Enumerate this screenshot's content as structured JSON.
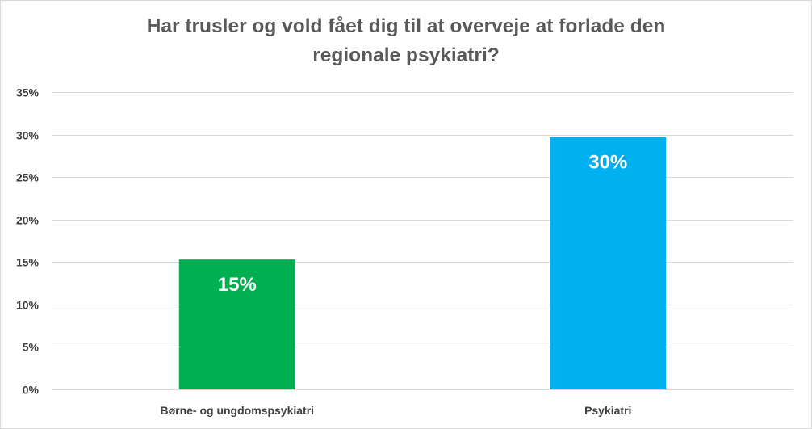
{
  "chart_data": {
    "type": "bar",
    "title": "Har trusler og vold fået dig til at overveje at forlade den regionale psykiatri?",
    "title_lines": [
      "Har trusler og vold fået dig til at overveje at forlade den",
      "regionale psykiatri?"
    ],
    "categories": [
      "Børne- og ungdomspsykiatri",
      "Psykiatri"
    ],
    "values": [
      0.153,
      0.297
    ],
    "data_labels": [
      "15%",
      "30%"
    ],
    "bar_colors": [
      "#00b050",
      "#00b0f0"
    ],
    "ylim": [
      0,
      0.35
    ],
    "yticks": [
      0,
      0.05,
      0.1,
      0.15,
      0.2,
      0.25,
      0.3,
      0.35
    ],
    "ytick_labels": [
      "0%",
      "5%",
      "10%",
      "15%",
      "20%",
      "25%",
      "30%",
      "35%"
    ],
    "grid": true,
    "gridline_color": "#d9d9d9",
    "xlabel": "",
    "ylabel": ""
  }
}
